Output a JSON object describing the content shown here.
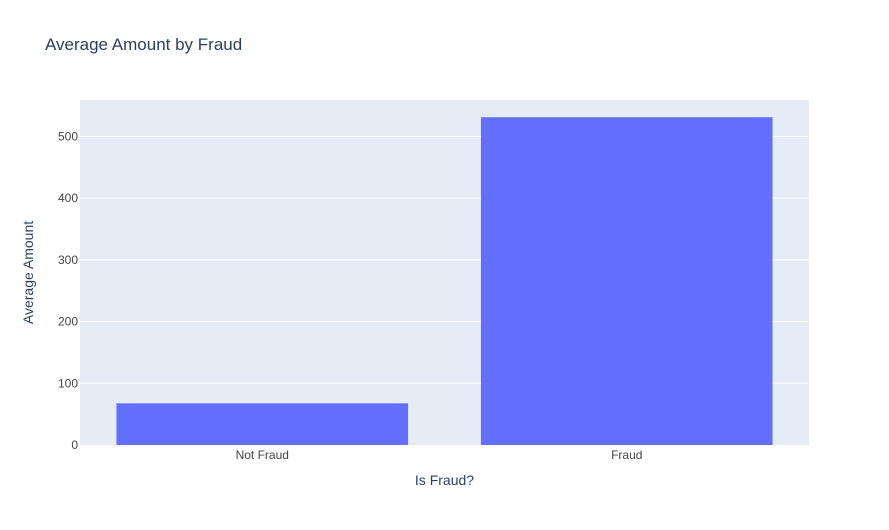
{
  "chart_data": {
    "type": "bar",
    "title": "Average Amount by Fraud",
    "xlabel": "Is Fraud?",
    "ylabel": "Average Amount",
    "categories": [
      "Not Fraud",
      "Fraud"
    ],
    "values": [
      67.5,
      531
    ],
    "ylim": [
      0,
      558.9
    ],
    "yticks": [
      0,
      100,
      200,
      300,
      400,
      500
    ],
    "grid": true,
    "bar_color": "#636efa",
    "plot_bg": "#e5ecf6",
    "grid_color": "#ffffff",
    "text_color": "#2a3f5f",
    "tick_color": "#444444"
  }
}
